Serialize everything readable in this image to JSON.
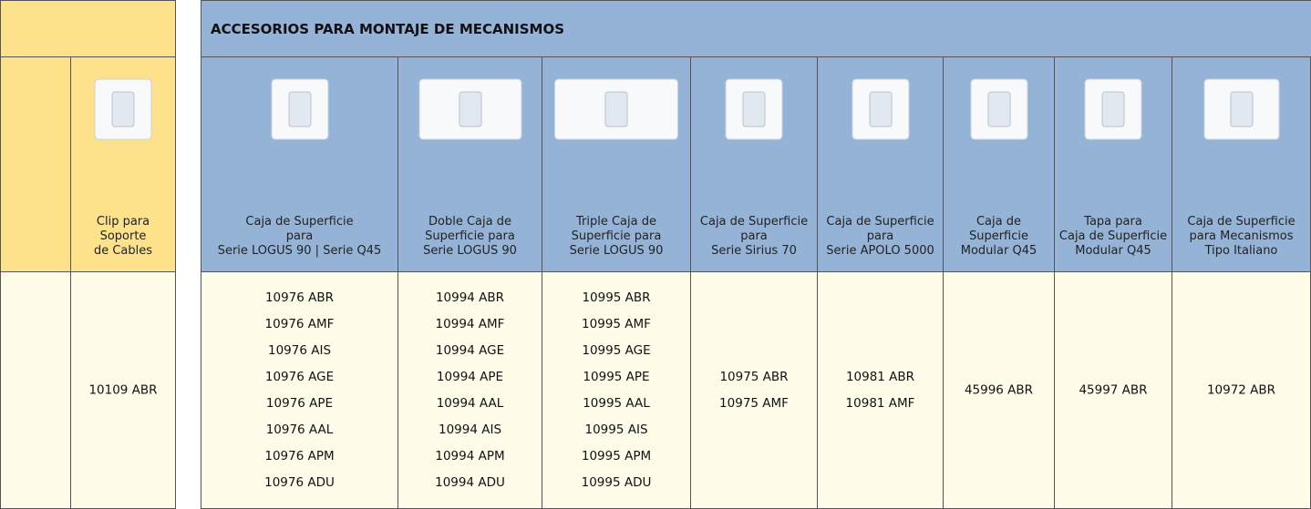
{
  "left": {
    "columns": [
      {
        "label": [
          "Clip para",
          "Soporte",
          "de Cables"
        ],
        "codes": [
          "10109 ABR"
        ]
      }
    ]
  },
  "table": {
    "title": "ACCESORIOS PARA MONTAJE DE MECANISMOS",
    "columns": [
      {
        "label": [
          "Caja de Superficie",
          "para",
          "Serie LOGUS 90 | Serie Q45"
        ],
        "codes": [
          "10976 ABR",
          "10976 AMF",
          "10976 AIS",
          "10976 AGE",
          "10976 APE",
          "10976 AAL",
          "10976 APM",
          "10976 ADU"
        ]
      },
      {
        "label": [
          "Doble Caja de",
          "Superficie para",
          "Serie LOGUS 90"
        ],
        "codes": [
          "10994 ABR",
          "10994 AMF",
          "10994 AGE",
          "10994 APE",
          "10994 AAL",
          "10994 AIS",
          "10994 APM",
          "10994 ADU"
        ]
      },
      {
        "label": [
          "Triple Caja de",
          "Superficie para",
          "Serie LOGUS 90"
        ],
        "codes": [
          "10995 ABR",
          "10995 AMF",
          "10995 AGE",
          "10995 APE",
          "10995 AAL",
          "10995 AIS",
          "10995 APM",
          "10995 ADU"
        ]
      },
      {
        "label": [
          "Caja de Superficie",
          "para",
          "Serie Sirius 70"
        ],
        "codes": [
          "10975 ABR",
          "10975 AMF"
        ]
      },
      {
        "label": [
          "Caja de Superficie",
          "para",
          "Serie APOLO 5000"
        ],
        "codes": [
          "10981 ABR",
          "10981 AMF"
        ]
      },
      {
        "label": [
          "Caja de",
          "Superficie",
          "Modular Q45"
        ],
        "codes": [
          "45996 ABR"
        ]
      },
      {
        "label": [
          "Tapa para",
          "Caja de Superficie",
          "Modular Q45"
        ],
        "codes": [
          "45997 ABR"
        ]
      },
      {
        "label": [
          "Caja de Superficie",
          "para Mecanismos",
          "Tipo Italiano"
        ],
        "codes": [
          "10972 ABR"
        ]
      }
    ]
  }
}
